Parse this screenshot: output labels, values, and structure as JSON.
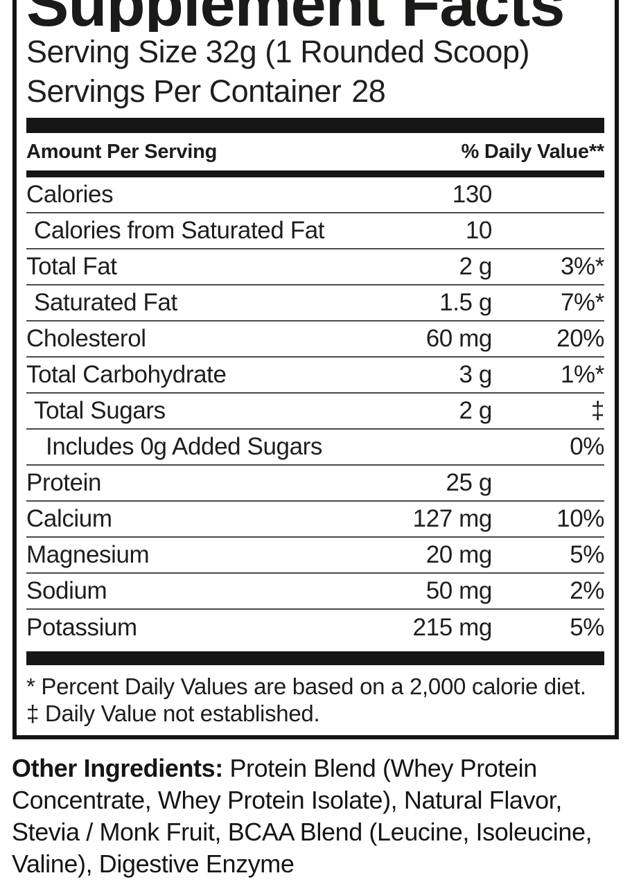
{
  "label": {
    "title": "Supplement Facts",
    "serving_size": "Serving Size 32g (1 Rounded Scoop)",
    "servings_per_container_label": "Servings Per Container",
    "servings_per_container_value": "28",
    "header": {
      "amount_col": "Amount Per Serving",
      "dv_col": "% Daily Value**"
    },
    "rows": [
      {
        "name": "Calories",
        "amount": "130",
        "dv": "",
        "indent": 0
      },
      {
        "name": "Calories from Saturated Fat",
        "amount": "10",
        "dv": "",
        "indent": 1
      },
      {
        "name": "Total Fat",
        "amount": "2 g",
        "dv": "3%*",
        "indent": 0
      },
      {
        "name": "Saturated Fat",
        "amount": "1.5 g",
        "dv": "7%*",
        "indent": 1
      },
      {
        "name": "Cholesterol",
        "amount": "60 mg",
        "dv": "20%",
        "indent": 0
      },
      {
        "name": "Total Carbohydrate",
        "amount": "3 g",
        "dv": "1%*",
        "indent": 0
      },
      {
        "name": "Total Sugars",
        "amount": "2 g",
        "dv": "‡",
        "indent": 1
      },
      {
        "name": "Includes 0g Added Sugars",
        "amount": "",
        "dv": "0%",
        "indent": 2
      },
      {
        "name": "Protein",
        "amount": "25 g",
        "dv": "",
        "indent": 0
      },
      {
        "name": "Calcium",
        "amount": "127 mg",
        "dv": "10%",
        "indent": 0
      },
      {
        "name": "Magnesium",
        "amount": "20 mg",
        "dv": "5%",
        "indent": 0
      },
      {
        "name": "Sodium",
        "amount": "50 mg",
        "dv": "2%",
        "indent": 0
      },
      {
        "name": "Potassium",
        "amount": "215 mg",
        "dv": "5%",
        "indent": 0
      }
    ],
    "footnotes": {
      "daily_values": "* Percent Daily Values are based on a 2,000 calorie diet.",
      "not_established": "‡ Daily Value not established."
    }
  },
  "other_ingredients": {
    "lead": "Other Ingredients:",
    "text": " Protein Blend (Whey Protein Concentrate, Whey Protein Isolate), Natural Flavor, Stevia / Monk Fruit, BCAA Blend (Leucine, Isoleucine, Valine), Digestive Enzyme"
  },
  "colors": {
    "text": "#1d1c1b",
    "bar": "#171615",
    "divider": "#4a4a4a",
    "border": "#151413",
    "background": "#ffffff"
  }
}
